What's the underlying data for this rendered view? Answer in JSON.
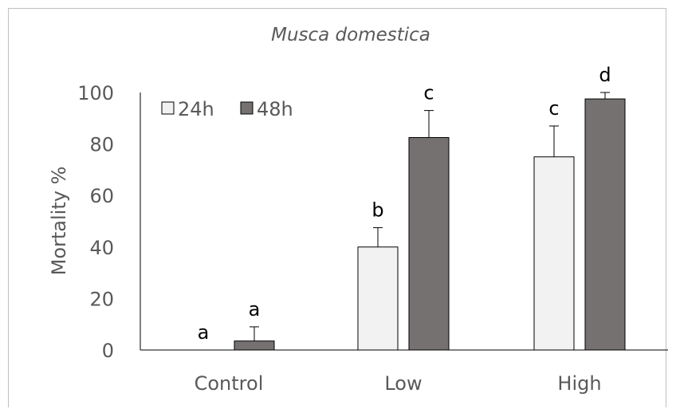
{
  "chart_data": {
    "type": "bar",
    "title": "Musca domestica",
    "xlabel": "",
    "ylabel": "Mortality %",
    "categories": [
      "Control",
      "Low",
      "High"
    ],
    "ylim": [
      0,
      100
    ],
    "yticks": [
      "0",
      "20",
      "40",
      "60",
      "80",
      "100"
    ],
    "series": [
      {
        "name": "24h",
        "color": "#f2f2f2",
        "values": [
          0,
          40,
          75
        ],
        "errors": [
          0,
          7.5,
          12
        ],
        "letters": [
          "a",
          "b",
          "c"
        ]
      },
      {
        "name": "48h",
        "color": "#767171",
        "values": [
          3.5,
          82.5,
          97.5
        ],
        "errors": [
          5.5,
          10.5,
          2.5
        ],
        "letters": [
          "a",
          "c",
          "d"
        ]
      }
    ],
    "legend": "top-left",
    "grid": false
  }
}
